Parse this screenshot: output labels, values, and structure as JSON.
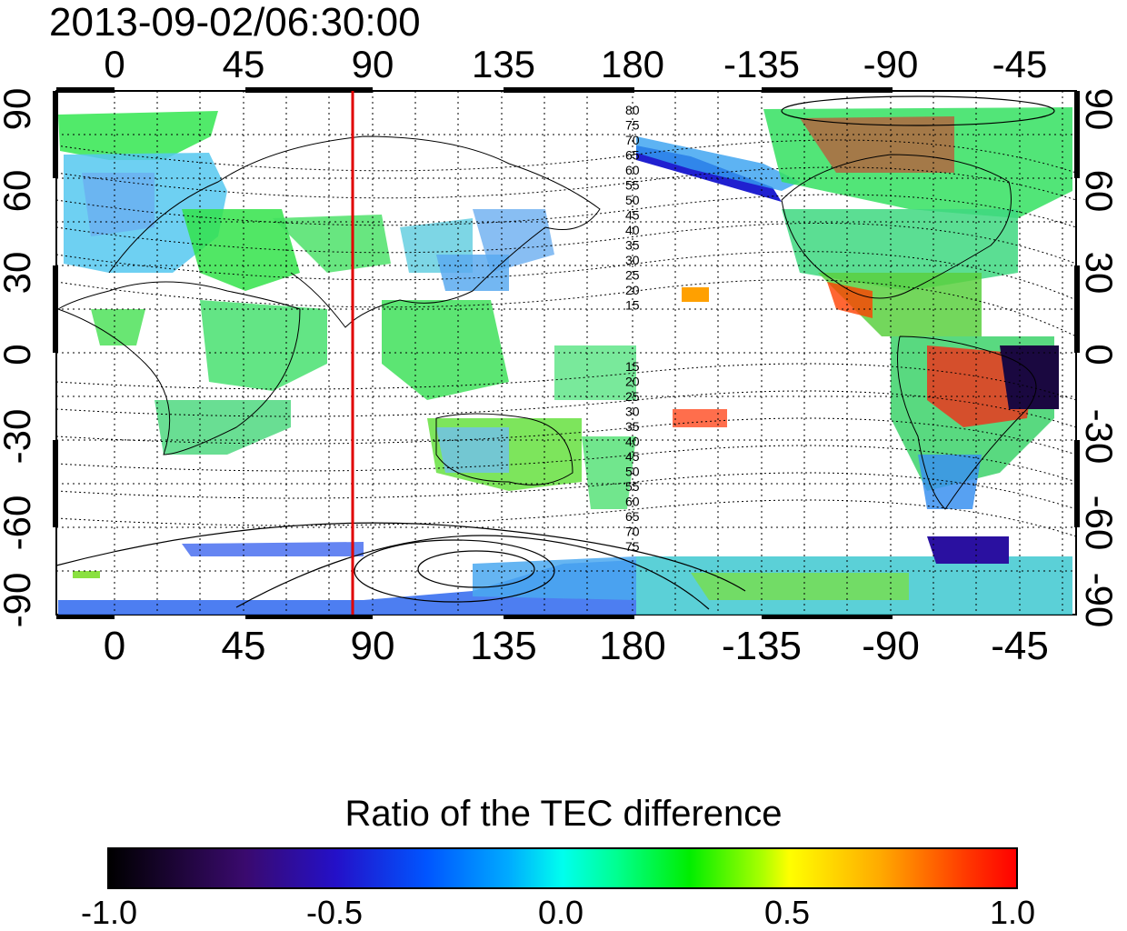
{
  "timestamp": "2013-09-02/06:30:00",
  "axes": {
    "lon_ticks_top": [
      "0",
      "45",
      "90",
      "135",
      "180",
      "-135",
      "-90",
      "-45"
    ],
    "lon_ticks_bottom": [
      "0",
      "45",
      "90",
      "135",
      "180",
      "-135",
      "-90",
      "-45"
    ],
    "lat_ticks_left": [
      "90",
      "60",
      "30",
      "0",
      "-30",
      "-60",
      "-90"
    ],
    "lat_ticks_right": [
      "90",
      "60",
      "30",
      "0",
      "-30",
      "-60",
      "-90"
    ],
    "lon_range": [
      -10,
      340
    ],
    "lat_range": [
      -90,
      90
    ],
    "grid": "dotted 15 degree"
  },
  "map": {
    "marker_line_longitude": 83,
    "marker_line_color": "#e00000",
    "contour_labels_north": [
      "80",
      "75",
      "70",
      "65",
      "60",
      "55",
      "50",
      "45",
      "40",
      "35",
      "30",
      "25",
      "20",
      "15"
    ],
    "contour_labels_south": [
      "15",
      "20",
      "25",
      "30",
      "35",
      "40",
      "45",
      "50",
      "55",
      "60",
      "65",
      "70",
      "75"
    ]
  },
  "colorbar": {
    "title": "Ratio of the TEC difference",
    "tick_labels": [
      "-1.0",
      "-0.5",
      "0.0",
      "0.5",
      "1.0"
    ],
    "range": [
      -1.0,
      1.0
    ]
  },
  "colors": {
    "negative_strong": "#000000",
    "negative": "#2410c8",
    "neutral": "#00ffee",
    "positive_mid": "#00ee00",
    "positive": "#ffff00",
    "positive_strong": "#ff0000"
  }
}
